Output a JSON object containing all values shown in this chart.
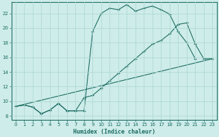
{
  "xlabel": "Humidex (Indice chaleur)",
  "bg_color": "#ceecea",
  "grid_color": "#aed8d4",
  "line_color": "#1a6b60",
  "xlim": [
    -0.5,
    23.5
  ],
  "ylim": [
    7.5,
    23.5
  ],
  "xticks": [
    0,
    1,
    2,
    3,
    4,
    5,
    6,
    7,
    8,
    9,
    10,
    11,
    12,
    13,
    14,
    15,
    16,
    17,
    18,
    19,
    20,
    21,
    22,
    23
  ],
  "yticks": [
    8,
    10,
    12,
    14,
    16,
    18,
    20,
    22
  ],
  "line1_x": [
    0,
    1,
    2,
    3,
    4,
    5,
    6,
    7,
    8,
    9,
    10,
    11,
    12,
    13,
    14,
    15,
    16,
    17,
    18,
    19,
    20,
    21
  ],
  "line1_y": [
    9.3,
    9.5,
    9.2,
    8.3,
    8.8,
    9.7,
    8.7,
    8.7,
    8.7,
    19.5,
    22.0,
    22.7,
    22.5,
    23.2,
    22.3,
    22.7,
    23.0,
    22.5,
    21.9,
    19.5,
    18.0,
    15.8
  ],
  "line2_x": [
    0,
    1,
    2,
    3,
    4,
    5,
    6,
    7,
    8,
    9,
    10,
    11,
    12,
    13,
    14,
    15,
    16,
    17,
    18,
    19,
    20,
    21,
    22,
    23
  ],
  "line2_y": [
    9.3,
    9.5,
    9.2,
    8.3,
    8.8,
    9.7,
    8.7,
    8.7,
    10.5,
    10.8,
    11.8,
    12.8,
    13.8,
    14.8,
    15.8,
    16.8,
    17.8,
    18.3,
    19.2,
    20.5,
    20.7,
    17.8,
    15.8,
    15.8
  ],
  "line3_x": [
    0,
    23
  ],
  "line3_y": [
    9.3,
    15.8
  ]
}
